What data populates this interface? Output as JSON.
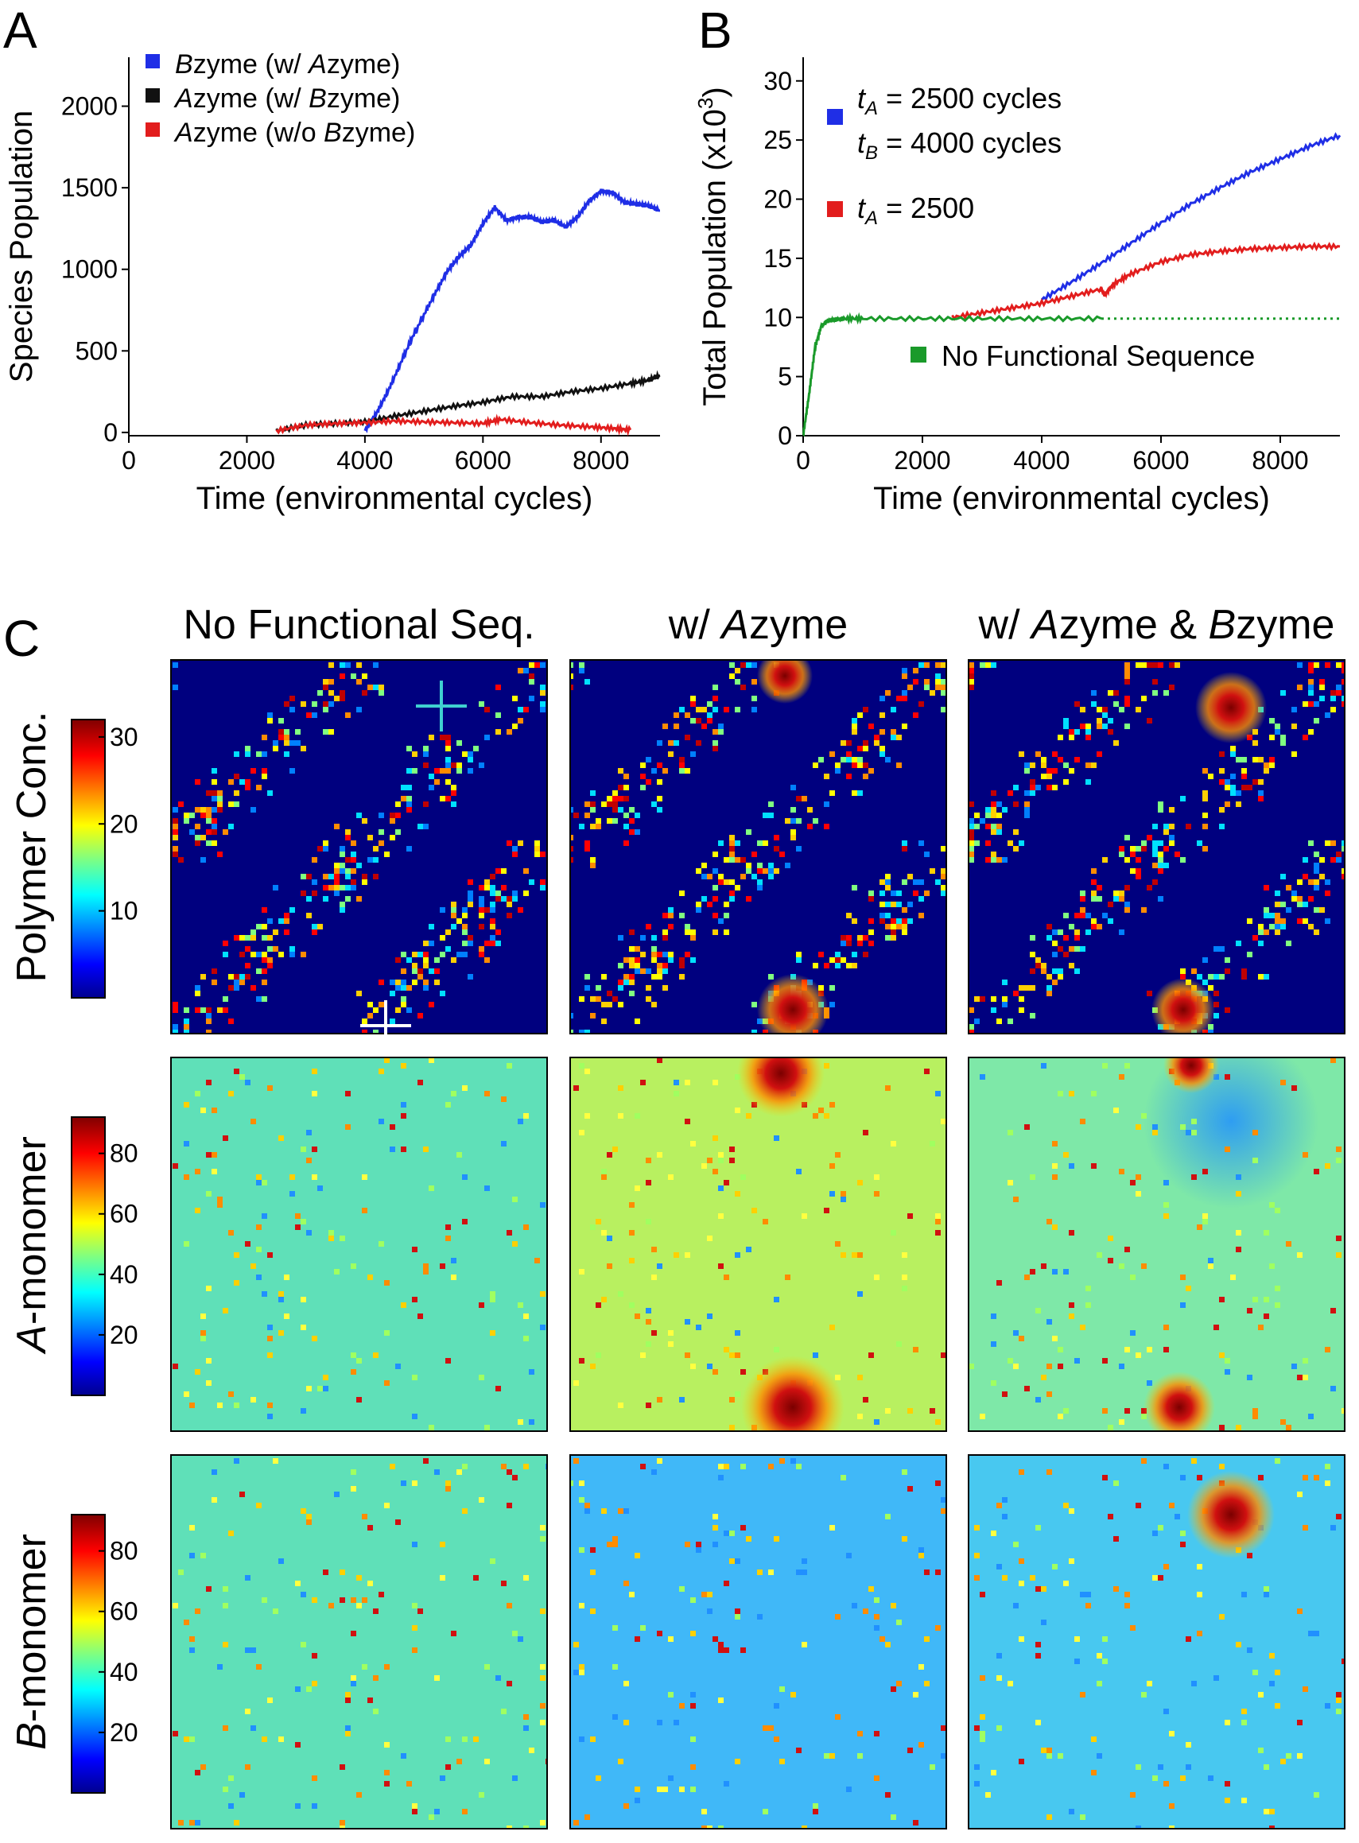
{
  "panel_labels": {
    "a": "A",
    "b": "B",
    "c": "C"
  },
  "chart_data": [
    {
      "type": "line",
      "panel": "A",
      "xlabel": "Time (environmental cycles)",
      "ylabel": "Species Population",
      "xlim": [
        0,
        9000
      ],
      "ylim": [
        -20,
        2300
      ],
      "xticks": [
        0,
        2000,
        4000,
        6000,
        8000
      ],
      "yticks": [
        0,
        500,
        1000,
        1500,
        2000
      ],
      "legend_position": "top-left",
      "series": [
        {
          "name": "Bzyme (w/ Azyme)",
          "legend_parts": [
            [
              "B",
              true
            ],
            [
              "zyme (w/ ",
              false
            ],
            [
              "A",
              true
            ],
            [
              "zyme)",
              false
            ]
          ],
          "color": "#1f2ee6",
          "x": [
            4000,
            4200,
            4400,
            4600,
            4800,
            5000,
            5200,
            5400,
            5600,
            5800,
            6000,
            6200,
            6400,
            6600,
            6800,
            7000,
            7200,
            7400,
            7600,
            7800,
            8000,
            8200,
            8400,
            8600,
            8800,
            9000
          ],
          "y": [
            10,
            120,
            260,
            420,
            580,
            720,
            860,
            990,
            1080,
            1150,
            1280,
            1380,
            1300,
            1320,
            1320,
            1290,
            1300,
            1260,
            1320,
            1420,
            1480,
            1470,
            1410,
            1400,
            1390,
            1360
          ]
        },
        {
          "name": "Azyme (w/ Bzyme)",
          "legend_parts": [
            [
              "A",
              true
            ],
            [
              "zyme (w/ ",
              false
            ],
            [
              "B",
              true
            ],
            [
              "zyme)",
              false
            ]
          ],
          "color": "#111111",
          "x": [
            2500,
            3000,
            3500,
            4000,
            4500,
            5000,
            5500,
            6000,
            6500,
            7000,
            7500,
            8000,
            8500,
            8800,
            9000
          ],
          "y": [
            10,
            45,
            55,
            65,
            100,
            130,
            160,
            185,
            220,
            220,
            250,
            270,
            300,
            320,
            350
          ]
        },
        {
          "name": "Azyme (w/o Bzyme)",
          "legend_parts": [
            [
              "A",
              true
            ],
            [
              "zyme (w/o ",
              false
            ],
            [
              "B",
              true
            ],
            [
              "zyme)",
              false
            ]
          ],
          "color": "#e21d1d",
          "x": [
            2500,
            3000,
            3500,
            4000,
            4500,
            5000,
            5500,
            6000,
            6300,
            6800,
            7300,
            7800,
            8200,
            8500
          ],
          "y": [
            10,
            45,
            55,
            60,
            70,
            65,
            60,
            55,
            80,
            60,
            45,
            35,
            25,
            15
          ]
        }
      ]
    },
    {
      "type": "line",
      "panel": "B",
      "xlabel": "Time (environmental cycles)",
      "ylabel": "Total Population (x10",
      "ylabel_exp": "3",
      "ylabel_close": ")",
      "xlim": [
        0,
        9000
      ],
      "ylim": [
        0,
        32
      ],
      "xticks": [
        0,
        2000,
        4000,
        6000,
        8000
      ],
      "yticks": [
        0,
        5,
        10,
        15,
        20,
        25,
        30
      ],
      "series": [
        {
          "name": "tA = 2500 cycles / tB = 4000 cycles",
          "legend_line1": [
            "t",
            "A",
            " = 2500 cycles"
          ],
          "legend_line2": [
            "t",
            "B",
            " = 4000 cycles"
          ],
          "color": "#1f2ee6",
          "x": [
            4000,
            4500,
            5000,
            5500,
            6000,
            6500,
            7000,
            7500,
            8000,
            8500,
            9000
          ],
          "y": [
            11.5,
            13.0,
            14.6,
            16.3,
            18.0,
            19.6,
            21.0,
            22.3,
            23.4,
            24.5,
            25.4
          ]
        },
        {
          "name": "tA = 2500",
          "legend_line1": [
            "t",
            "A",
            " = 2500"
          ],
          "color": "#e21d1d",
          "x": [
            2500,
            3000,
            3500,
            4000,
            4500,
            5000,
            5050,
            5200,
            5500,
            6000,
            6500,
            7000,
            7500,
            8000,
            8500,
            9000
          ],
          "y": [
            10.0,
            10.4,
            10.8,
            11.2,
            11.8,
            12.4,
            11.9,
            12.8,
            13.7,
            14.7,
            15.3,
            15.6,
            15.8,
            15.9,
            16.0,
            16.0
          ]
        },
        {
          "name": "No Functional Sequence",
          "legend_line1": [
            "No Functional Sequence"
          ],
          "color": "#1a9a2a",
          "x": [
            0,
            100,
            200,
            300,
            400,
            500,
            700,
            1000,
            2000,
            3000,
            4000,
            5000
          ],
          "y": [
            0,
            3.5,
            7.5,
            9.2,
            9.7,
            9.8,
            9.9,
            9.9,
            9.9,
            9.9,
            9.9,
            9.9
          ],
          "dotted_x": [
            5000,
            9000
          ],
          "dotted_y": [
            9.9,
            9.9
          ]
        }
      ]
    }
  ],
  "panel_c": {
    "columns": [
      {
        "parts": [
          [
            "No Functional Seq.",
            false
          ]
        ]
      },
      {
        "parts": [
          [
            "w/ ",
            false
          ],
          [
            "A",
            true
          ],
          [
            "zyme",
            false
          ]
        ]
      },
      {
        "parts": [
          [
            "w/ ",
            false
          ],
          [
            "A",
            true
          ],
          [
            "zyme & ",
            false
          ],
          [
            "B",
            true
          ],
          [
            "zyme",
            false
          ]
        ]
      }
    ],
    "rows": [
      {
        "label_parts": [
          [
            "Polymer Conc.",
            false
          ]
        ],
        "colorbar_ticks": [
          "10",
          "20",
          "30"
        ],
        "colorbar_max": 32,
        "base_color": "#00007f"
      },
      {
        "label_parts": [
          [
            "A",
            true
          ],
          [
            "-monomer",
            false
          ]
        ],
        "colorbar_ticks": [
          "20",
          "40",
          "60",
          "80"
        ],
        "colorbar_max": 92,
        "base_color": "#5fe0b8"
      },
      {
        "label_parts": [
          [
            "B",
            true
          ],
          [
            "-monomer",
            false
          ]
        ],
        "colorbar_ticks": [
          "20",
          "40",
          "60",
          "80"
        ],
        "colorbar_max": 92,
        "base_color": "#5fe0b8"
      }
    ],
    "markers": [
      {
        "heatmap": "row0-col0",
        "style": "cross",
        "color": "#40d0d0"
      },
      {
        "heatmap": "row0-col0",
        "style": "cross",
        "color": "#ffffff"
      }
    ]
  }
}
